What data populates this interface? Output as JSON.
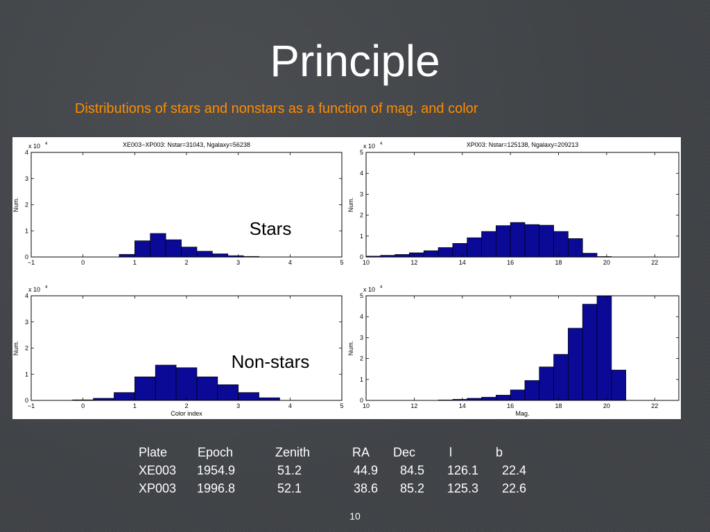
{
  "slide": {
    "title": "Principle",
    "subtitle": "Distributions of stars and nonstars as a function of mag. and color",
    "page_number": "10",
    "subtitle_color": "#ff8c00",
    "bar_color": "#0a0a96"
  },
  "annotations": {
    "stars": "Stars",
    "nonstars": "Non-stars"
  },
  "chart_data": [
    {
      "type": "bar",
      "title": "XE003−XP003: Nstar=31043, Ngalaxy=56238",
      "multiplier": "x 10",
      "exponent": "4",
      "xlabel": "",
      "ylabel": "Num.",
      "xlim": [
        -1,
        5
      ],
      "ylim": [
        0,
        4
      ],
      "xticks": [
        "−1",
        "0",
        "1",
        "2",
        "3",
        "4",
        "5"
      ],
      "yticks": [
        "0",
        "1",
        "2",
        "3",
        "4"
      ],
      "bin_edges": [
        0.7,
        1.0,
        1.3,
        1.6,
        1.9,
        2.2,
        2.5,
        2.8,
        3.1,
        3.4
      ],
      "values": [
        0.1,
        0.62,
        0.9,
        0.66,
        0.38,
        0.22,
        0.12,
        0.05,
        0.02
      ],
      "unit_scale": "x 10^4"
    },
    {
      "type": "bar",
      "title": "XP003: Nstar=125138, Ngalaxy=209213",
      "multiplier": "x 10",
      "exponent": "4",
      "xlabel": "",
      "ylabel": "Num.",
      "xlim": [
        10,
        23
      ],
      "ylim": [
        0,
        5
      ],
      "xticks": [
        "10",
        "12",
        "14",
        "16",
        "18",
        "20",
        "22"
      ],
      "yticks": [
        "0",
        "1",
        "2",
        "3",
        "4",
        "5"
      ],
      "bin_edges": [
        10.0,
        10.6,
        11.2,
        11.8,
        12.4,
        13.0,
        13.6,
        14.2,
        14.8,
        15.4,
        16.0,
        16.6,
        17.2,
        17.8,
        18.4,
        19.0,
        19.6,
        20.2,
        20.8
      ],
      "values": [
        0.04,
        0.08,
        0.12,
        0.2,
        0.3,
        0.45,
        0.65,
        0.92,
        1.22,
        1.5,
        1.65,
        1.55,
        1.52,
        1.22,
        0.88,
        0.18,
        0.02,
        0.0
      ],
      "unit_scale": "x 10^4"
    },
    {
      "type": "bar",
      "title": "",
      "multiplier": "x 10",
      "exponent": "4",
      "xlabel": "Color index",
      "ylabel": "Num.",
      "xlim": [
        -1,
        5
      ],
      "ylim": [
        0,
        4
      ],
      "xticks": [
        "−1",
        "0",
        "1",
        "2",
        "3",
        "4",
        "5"
      ],
      "yticks": [
        "0",
        "1",
        "2",
        "3",
        "4"
      ],
      "bin_edges": [
        -0.2,
        0.2,
        0.6,
        1.0,
        1.4,
        1.8,
        2.2,
        2.6,
        3.0,
        3.4,
        3.8
      ],
      "values": [
        0.02,
        0.08,
        0.3,
        0.9,
        1.35,
        1.25,
        0.9,
        0.6,
        0.3,
        0.1
      ],
      "unit_scale": "x 10^4"
    },
    {
      "type": "bar",
      "title": "",
      "multiplier": "x 10",
      "exponent": "4",
      "xlabel": "Mag.",
      "ylabel": "Num.",
      "xlim": [
        10,
        23
      ],
      "ylim": [
        0,
        5
      ],
      "xticks": [
        "10",
        "12",
        "14",
        "16",
        "18",
        "20",
        "22"
      ],
      "yticks": [
        "0",
        "1",
        "2",
        "3",
        "4",
        "5"
      ],
      "bin_edges": [
        13.0,
        13.6,
        14.2,
        14.8,
        15.4,
        16.0,
        16.6,
        17.2,
        17.8,
        18.4,
        19.0,
        19.6,
        20.2,
        20.8
      ],
      "values": [
        0.02,
        0.05,
        0.1,
        0.15,
        0.25,
        0.5,
        0.95,
        1.6,
        2.2,
        3.45,
        4.6,
        5.0,
        1.45
      ],
      "unit_scale": "x 10^4"
    }
  ],
  "table": {
    "headers": [
      "Plate",
      "Epoch",
      "Zenith",
      "RA",
      "Dec",
      "l",
      "b"
    ],
    "rows": [
      [
        "XE003",
        "1954.9",
        "51.2",
        "44.9",
        "84.5",
        "126.1",
        "22.4"
      ],
      [
        "XP003",
        "1996.8",
        "52.1",
        "38.6",
        "85.2",
        "125.3",
        "22.6"
      ]
    ]
  }
}
